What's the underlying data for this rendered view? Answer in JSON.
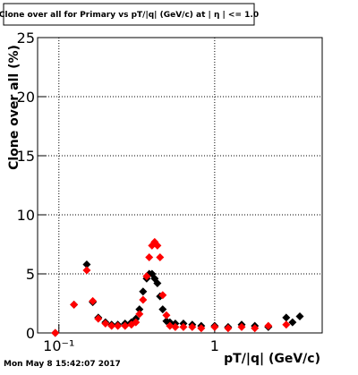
{
  "chart_data": {
    "type": "scatter",
    "title": "Clone  over all for Primary vs pT/|q| (GeV/c) at |  η | <= 1.0",
    "x_label": "pT/|q| (GeV/c)",
    "y_label": "Clone  over all (%)",
    "xscale": "log",
    "grid": true,
    "xlim": [
      0.073,
      4.9
    ],
    "ylim": [
      0,
      25
    ],
    "xticks": [
      {
        "value": 0.1,
        "label": "10⁻¹"
      },
      1
    ],
    "yticks": [
      0,
      5,
      10,
      15,
      20,
      25
    ],
    "x": [
      0.0948,
      0.125,
      0.151,
      0.165,
      0.179,
      0.199,
      0.218,
      0.239,
      0.266,
      0.292,
      0.312,
      0.329,
      0.347,
      0.366,
      0.38,
      0.396,
      0.412,
      0.429,
      0.446,
      0.464,
      0.49,
      0.516,
      0.559,
      0.63,
      0.718,
      0.82,
      1.0,
      1.22,
      1.49,
      1.81,
      2.21,
      2.88,
      3.16,
      3.52
    ],
    "series": [
      {
        "name": "black",
        "color": "#000000",
        "values": [
          0,
          2.4,
          5.8,
          2.6,
          1.3,
          0.9,
          0.7,
          0.7,
          0.8,
          0.9,
          1.2,
          2.0,
          3.5,
          4.6,
          5.0,
          5.0,
          4.6,
          4.2,
          3.1,
          2.0,
          1.0,
          0.9,
          0.8,
          0.8,
          0.7,
          0.6,
          0.6,
          0.5,
          0.7,
          0.6,
          0.5,
          1.3,
          0.9,
          1.4
        ]
      },
      {
        "name": "red",
        "color": "#ff0000",
        "values": [
          0,
          2.4,
          5.3,
          2.7,
          1.2,
          0.8,
          0.6,
          0.6,
          0.6,
          0.7,
          0.9,
          1.6,
          2.8,
          4.8,
          6.4,
          7.4,
          7.7,
          7.4,
          6.4,
          3.2,
          1.5,
          0.6,
          0.5,
          0.5,
          0.5,
          0.4,
          0.5,
          0.4,
          0.5,
          0.4,
          0.6,
          0.7,
          null,
          null
        ]
      }
    ]
  },
  "timestamp": "Mon May  8 15:42:07 2017"
}
